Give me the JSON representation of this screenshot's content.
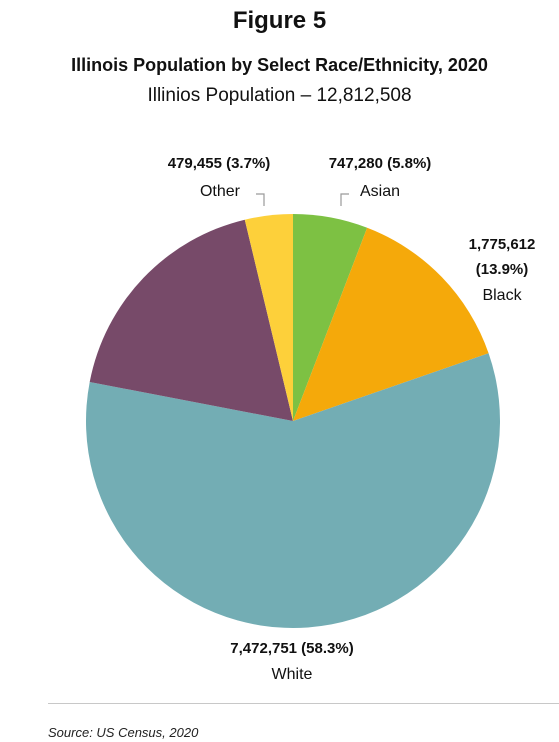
{
  "figure_label": "Figure 5",
  "chart_data": {
    "type": "pie",
    "title": "Illinois Population by Select Race/Ethnicity, 2020",
    "subtitle": "Illinios Population – 12,812,508",
    "start_angle_deg": 0,
    "direction": "clockwise",
    "slices": [
      {
        "label": "Asian",
        "value": 747280,
        "value_label": "747,280 (5.8%)",
        "color": "#7DC143"
      },
      {
        "label": "Black",
        "value": 1775612,
        "value_label": "1,775,612",
        "value_label_2": "(13.9%)",
        "color": "#F5A90A"
      },
      {
        "label": "White",
        "value": 7472751,
        "value_label": "7,472,751 (58.3%)",
        "color": "#73ADB4"
      },
      {
        "label": "",
        "value": 2337410,
        "value_label": "",
        "color": "#774A69"
      },
      {
        "label": "Other",
        "value": 479455,
        "value_label": "479,455 (3.7%)",
        "color": "#FDD03A"
      }
    ]
  },
  "source": "Source: US Census, 2020"
}
